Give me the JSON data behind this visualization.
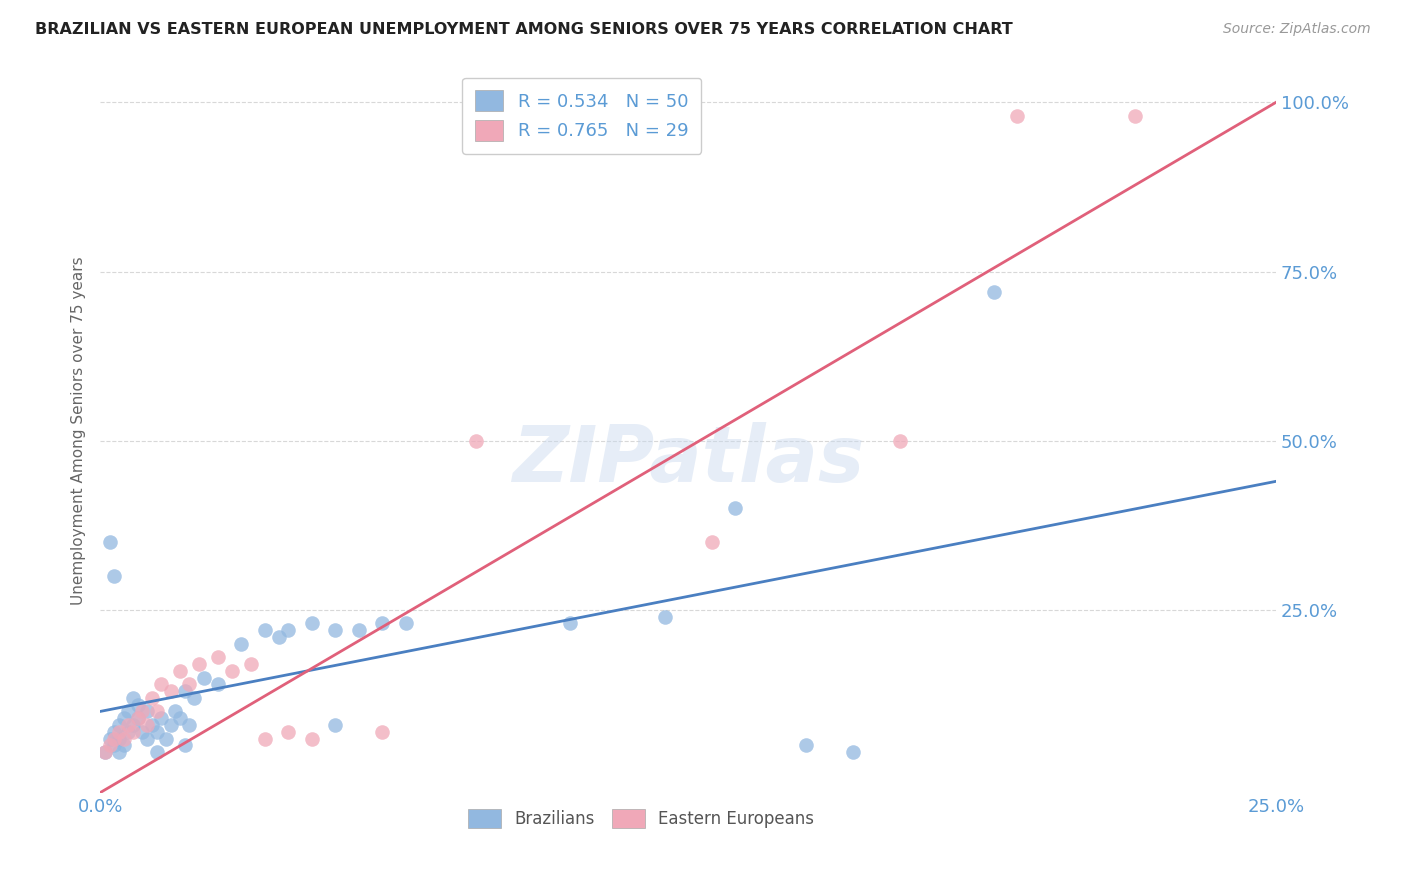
{
  "title": "BRAZILIAN VS EASTERN EUROPEAN UNEMPLOYMENT AMONG SENIORS OVER 75 YEARS CORRELATION CHART",
  "source": "Source: ZipAtlas.com",
  "ylabel": "Unemployment Among Seniors over 75 years",
  "xlim": [
    0.0,
    0.25
  ],
  "ylim": [
    -0.02,
    1.05
  ],
  "background_color": "#ffffff",
  "grid_color": "#d8d8d8",
  "legend_R_blue": "0.534",
  "legend_N_blue": "50",
  "legend_R_pink": "0.765",
  "legend_N_pink": "29",
  "blue_color": "#92b8e0",
  "pink_color": "#f0a8b8",
  "blue_line_color": "#4a7fc1",
  "pink_line_color": "#e0607a",
  "axis_label_color": "#5b9bd5",
  "blue_scatter_x": [
    0.001,
    0.002,
    0.003,
    0.003,
    0.004,
    0.004,
    0.005,
    0.005,
    0.006,
    0.006,
    0.007,
    0.007,
    0.008,
    0.009,
    0.01,
    0.01,
    0.011,
    0.012,
    0.013,
    0.014,
    0.015,
    0.016,
    0.017,
    0.018,
    0.019,
    0.02,
    0.022,
    0.025,
    0.03,
    0.035,
    0.038,
    0.04,
    0.045,
    0.05,
    0.055,
    0.06,
    0.065,
    0.1,
    0.12,
    0.15,
    0.16,
    0.19,
    0.002,
    0.003,
    0.004,
    0.008,
    0.012,
    0.018,
    0.05,
    0.135
  ],
  "blue_scatter_y": [
    0.04,
    0.06,
    0.05,
    0.07,
    0.06,
    0.08,
    0.05,
    0.09,
    0.07,
    0.1,
    0.08,
    0.12,
    0.09,
    0.07,
    0.1,
    0.06,
    0.08,
    0.07,
    0.09,
    0.06,
    0.08,
    0.1,
    0.09,
    0.13,
    0.08,
    0.12,
    0.15,
    0.14,
    0.2,
    0.22,
    0.21,
    0.22,
    0.23,
    0.22,
    0.22,
    0.23,
    0.23,
    0.23,
    0.24,
    0.05,
    0.04,
    0.72,
    0.35,
    0.3,
    0.04,
    0.11,
    0.04,
    0.05,
    0.08,
    0.4
  ],
  "pink_scatter_x": [
    0.001,
    0.002,
    0.003,
    0.004,
    0.005,
    0.006,
    0.007,
    0.008,
    0.009,
    0.01,
    0.011,
    0.012,
    0.013,
    0.015,
    0.017,
    0.019,
    0.021,
    0.025,
    0.028,
    0.032,
    0.035,
    0.04,
    0.045,
    0.06,
    0.08,
    0.13,
    0.17,
    0.195,
    0.22
  ],
  "pink_scatter_y": [
    0.04,
    0.05,
    0.06,
    0.07,
    0.06,
    0.08,
    0.07,
    0.09,
    0.1,
    0.08,
    0.12,
    0.1,
    0.14,
    0.13,
    0.16,
    0.14,
    0.17,
    0.18,
    0.16,
    0.17,
    0.06,
    0.07,
    0.06,
    0.07,
    0.5,
    0.35,
    0.5,
    0.98,
    0.98
  ],
  "blue_line_x0": 0.0,
  "blue_line_y0": 0.1,
  "blue_line_x1": 0.25,
  "blue_line_y1": 0.44,
  "pink_line_x0": 0.0,
  "pink_line_y0": -0.02,
  "pink_line_x1": 0.25,
  "pink_line_y1": 1.0,
  "yticks": [
    0.25,
    0.5,
    0.75,
    1.0
  ],
  "ytick_labels": [
    "25.0%",
    "50.0%",
    "75.0%",
    "100.0%"
  ],
  "xticks": [
    0.0,
    0.05,
    0.1,
    0.15,
    0.2,
    0.25
  ],
  "xtick_labels_show": [
    "0.0%",
    "",
    "",
    "",
    "",
    "25.0%"
  ]
}
